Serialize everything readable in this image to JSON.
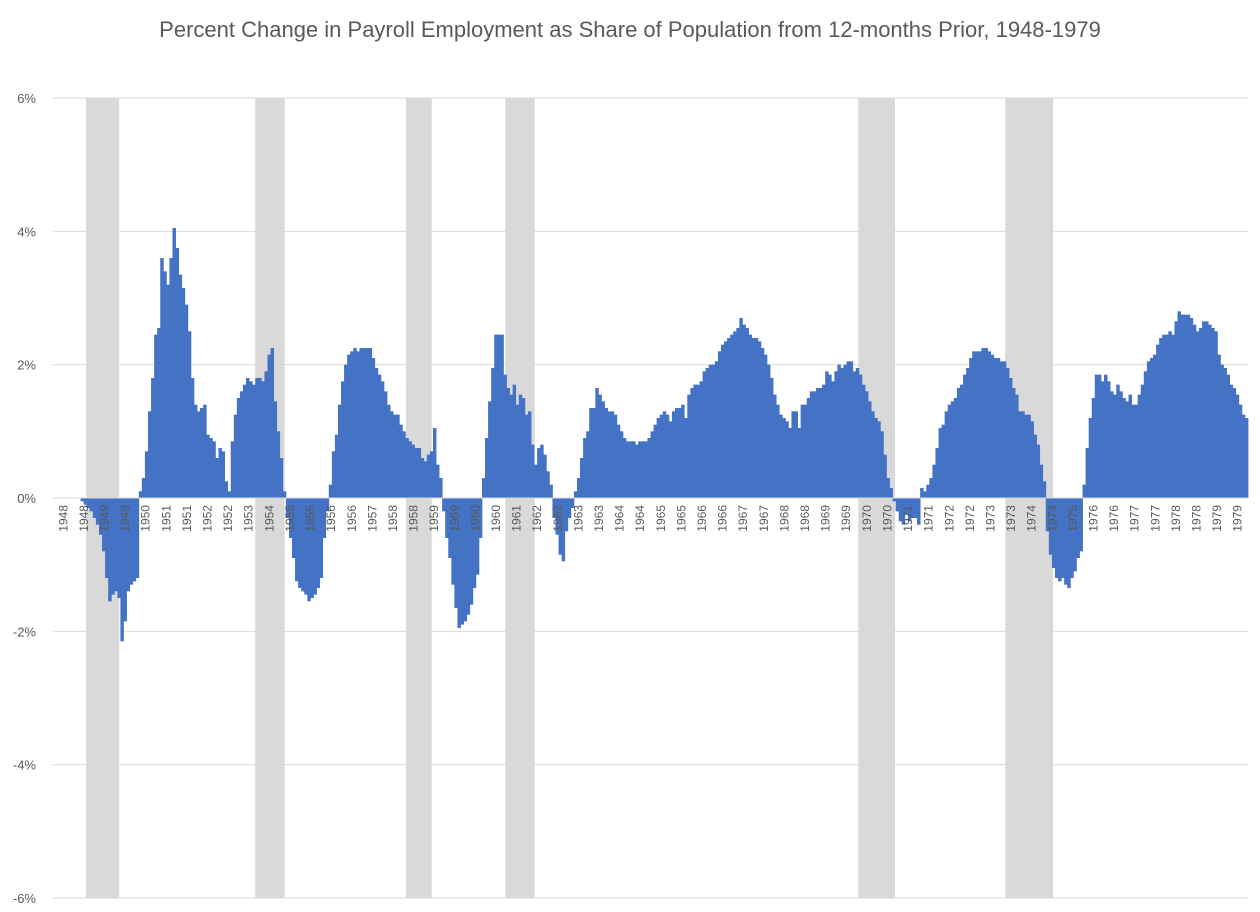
{
  "chart_data": {
    "type": "bar",
    "title": "Percent Change in Payroll Employment as Share of Population from 12-months Prior, 1948-1979",
    "xlabel": "",
    "ylabel": "",
    "ylim": [
      -6,
      6
    ],
    "y_ticks": [
      "6%",
      "4%",
      "2%",
      "0%",
      "-2%",
      "-4%",
      "-6%"
    ],
    "y_tick_values": [
      6,
      4,
      2,
      0,
      -2,
      -4,
      -6
    ],
    "grid": true,
    "legend": "none",
    "bar_color": "#4472C4",
    "recession_color": "#D9D9D9",
    "x_ticks": [
      "1948",
      "1948",
      "1949",
      "1949",
      "1950",
      "1951",
      "1951",
      "1952",
      "1952",
      "1953",
      "1954",
      "1955",
      "1955",
      "1956",
      "1956",
      "1957",
      "1958",
      "1958",
      "1959",
      "1959",
      "1960",
      "1960",
      "1961",
      "1962",
      "1962",
      "1963",
      "1963",
      "1964",
      "1964",
      "1965",
      "1965",
      "1966",
      "1966",
      "1967",
      "1967",
      "1968",
      "1968",
      "1969",
      "1969",
      "1970",
      "1970",
      "1971",
      "1971",
      "1972",
      "1972",
      "1973",
      "1973",
      "1974",
      "1974",
      "1975",
      "1976",
      "1976",
      "1977",
      "1977",
      "1978",
      "1978",
      "1979",
      "1979"
    ],
    "recessions": [
      {
        "start": "1948.9",
        "end": "1949.8"
      },
      {
        "start": "1953.5",
        "end": "1954.3"
      },
      {
        "start": "1957.6",
        "end": "1958.3"
      },
      {
        "start": "1960.3",
        "end": "1961.1"
      },
      {
        "start": "1969.9",
        "end": "1970.9"
      },
      {
        "start": "1973.9",
        "end": "1975.2"
      }
    ],
    "series": [
      {
        "start": "1948-01",
        "values": [
          0,
          0,
          0,
          0,
          0,
          0,
          0,
          0,
          0,
          -0.05,
          -0.1,
          -0.15,
          -0.2,
          -0.3,
          -0.4,
          -0.55,
          -0.8,
          -1.2,
          -1.55,
          -1.45,
          -1.4,
          -1.5,
          -2.15,
          -1.85,
          -1.4,
          -1.3,
          -1.25,
          -1.2,
          0.1,
          0.3,
          0.7,
          1.3,
          1.8,
          2.45,
          2.55,
          3.6,
          3.4,
          3.2,
          3.6,
          4.05,
          3.75,
          3.35,
          3.15,
          2.9,
          2.5,
          1.8,
          1.4,
          1.3,
          1.35,
          1.4,
          0.95,
          0.9,
          0.85,
          0.6,
          0.75,
          0.7,
          0.25,
          0.1,
          0.85,
          1.25,
          1.5,
          1.6,
          1.7,
          1.8,
          1.75,
          1.7,
          1.8,
          1.8,
          1.75,
          1.9,
          2.15,
          2.25,
          1.45,
          1.0,
          0.6,
          0.1,
          -0.3,
          -0.6,
          -0.9,
          -1.25,
          -1.35,
          -1.4,
          -1.45,
          -1.55,
          -1.5,
          -1.45,
          -1.35,
          -1.2,
          -0.6,
          -0.2,
          0.2,
          0.7,
          0.95,
          1.4,
          1.75,
          2.0,
          2.15,
          2.2,
          2.25,
          2.2,
          2.25,
          2.25,
          2.25,
          2.25,
          2.1,
          1.95,
          1.85,
          1.75,
          1.6,
          1.4,
          1.3,
          1.25,
          1.25,
          1.1,
          1.0,
          0.9,
          0.85,
          0.8,
          0.75,
          0.75,
          0.6,
          0.55,
          0.65,
          0.7,
          1.05,
          0.5,
          0.3,
          -0.2,
          -0.6,
          -0.9,
          -1.3,
          -1.65,
          -1.95,
          -1.9,
          -1.85,
          -1.75,
          -1.6,
          -1.35,
          -1.15,
          -0.6,
          0.3,
          0.9,
          1.45,
          1.95,
          2.45,
          2.45,
          2.45,
          1.85,
          1.65,
          1.55,
          1.7,
          1.4,
          1.55,
          1.5,
          1.25,
          1.3,
          0.8,
          0.5,
          0.75,
          0.8,
          0.65,
          0.4,
          0.2,
          -0.3,
          -0.55,
          -0.85,
          -0.95,
          -0.5,
          -0.3,
          -0.15,
          0.1,
          0.3,
          0.6,
          0.9,
          1.0,
          1.35,
          1.35,
          1.65,
          1.55,
          1.45,
          1.35,
          1.3,
          1.3,
          1.25,
          1.1,
          1.0,
          0.9,
          0.85,
          0.85,
          0.85,
          0.8,
          0.85,
          0.85,
          0.85,
          0.9,
          1.0,
          1.1,
          1.2,
          1.25,
          1.3,
          1.25,
          1.15,
          1.3,
          1.35,
          1.35,
          1.4,
          1.2,
          1.55,
          1.65,
          1.7,
          1.7,
          1.75,
          1.9,
          1.95,
          2.0,
          2.0,
          2.05,
          2.2,
          2.3,
          2.35,
          2.4,
          2.45,
          2.5,
          2.55,
          2.7,
          2.6,
          2.55,
          2.45,
          2.4,
          2.4,
          2.35,
          2.25,
          2.15,
          2.0,
          1.8,
          1.55,
          1.4,
          1.25,
          1.2,
          1.15,
          1.05,
          1.3,
          1.3,
          1.05,
          1.4,
          1.4,
          1.5,
          1.6,
          1.6,
          1.65,
          1.65,
          1.7,
          1.9,
          1.85,
          1.75,
          1.9,
          2.0,
          1.95,
          2.0,
          2.05,
          2.05,
          1.9,
          1.95,
          1.85,
          1.7,
          1.6,
          1.45,
          1.3,
          1.2,
          1.15,
          1.0,
          0.65,
          0.3,
          0.15,
          -0.05,
          -0.2,
          -0.35,
          -0.4,
          -0.25,
          -0.35,
          -0.3,
          -0.3,
          -0.4,
          0.15,
          0.1,
          0.2,
          0.3,
          0.5,
          0.75,
          1.05,
          1.1,
          1.3,
          1.4,
          1.45,
          1.5,
          1.65,
          1.7,
          1.85,
          1.95,
          2.1,
          2.2,
          2.2,
          2.2,
          2.25,
          2.25,
          2.2,
          2.15,
          2.1,
          2.1,
          2.05,
          2.05,
          1.95,
          1.8,
          1.65,
          1.55,
          1.3,
          1.3,
          1.25,
          1.25,
          1.15,
          0.95,
          0.8,
          0.5,
          0.25,
          -0.5,
          -0.85,
          -1.05,
          -1.2,
          -1.25,
          -1.2,
          -1.3,
          -1.35,
          -1.2,
          -1.1,
          -0.9,
          -0.8,
          0.2,
          0.75,
          1.2,
          1.5,
          1.85,
          1.85,
          1.75,
          1.85,
          1.75,
          1.6,
          1.55,
          1.7,
          1.6,
          1.5,
          1.45,
          1.55,
          1.4,
          1.4,
          1.55,
          1.7,
          1.9,
          2.05,
          2.1,
          2.15,
          2.3,
          2.4,
          2.45,
          2.45,
          2.5,
          2.45,
          2.65,
          2.8,
          2.75,
          2.75,
          2.75,
          2.7,
          2.6,
          2.5,
          2.55,
          2.65,
          2.65,
          2.6,
          2.55,
          2.5,
          2.15,
          2.0,
          1.95,
          1.85,
          1.7,
          1.65,
          1.55,
          1.4,
          1.25,
          1.2
        ]
      }
    ]
  }
}
